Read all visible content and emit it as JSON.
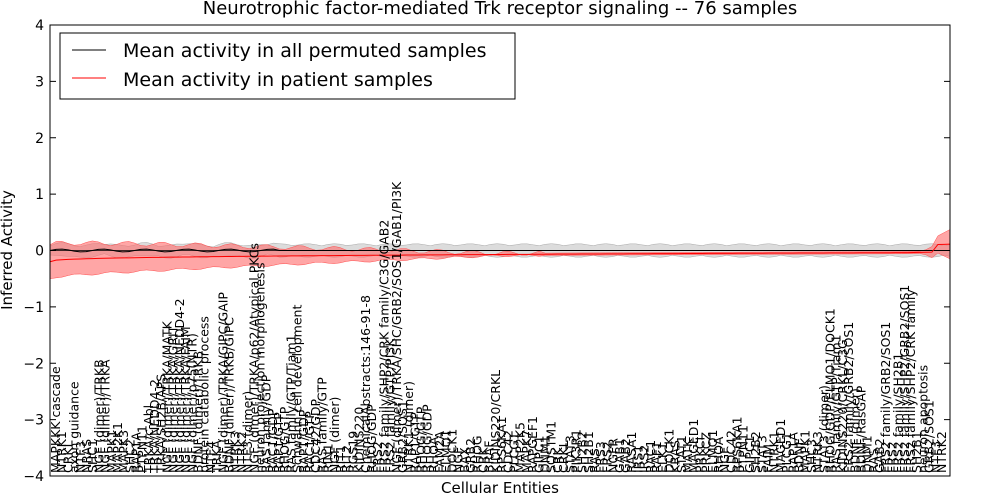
{
  "chart_data": {
    "type": "line",
    "title": "Neurotrophic factor-mediated Trk receptor signaling -- 76 samples",
    "xlabel": "Cellular Entities",
    "ylabel": "Inferred Activity",
    "ylim": [
      -4,
      4
    ],
    "yticks": [
      -4,
      -3,
      -2,
      -1,
      0,
      1,
      2,
      3,
      4
    ],
    "legend": {
      "position": "top-left",
      "entries": [
        {
          "label": "Mean activity in all permuted samples",
          "color": "#000000"
        },
        {
          "label": "Mean activity in patient samples",
          "color": "#ff0000"
        }
      ]
    },
    "colors": {
      "permuted_line": "#000000",
      "permuted_band": "#bfbfbf",
      "patient_line": "#ff0000",
      "patient_band": "#ff6b6b"
    },
    "n_points": 150,
    "series": [
      {
        "name": "Mean activity in all permuted samples",
        "mean": 0.0,
        "band": 0.1
      },
      {
        "name": "Mean activity in patient samples",
        "start": -0.2,
        "end": 0.1,
        "band_start": 0.3,
        "band_end": 0.02
      }
    ],
    "entity_labels": [
      "MAPKKK cascade",
      "NTRK1",
      "CRKL",
      "axon guidance",
      "NTF3",
      "NRAS",
      "SHC1",
      "NGF (dimer)/TRKB",
      "NGF (dimer)/TRKA",
      "MAPK1",
      "MAP2K1",
      "MAPK3",
      "SHC2",
      "RAP1A",
      "PTPN11",
      "TRKA/c-Abl",
      "TRKA/NEDD4-2",
      "TRKA/SH2B/APS",
      "NGF (dimer)/TRKA/MATK",
      "NGF (dimer)/TRKA/GRIT",
      "NGF (dimer)/TRKA/NEDD4-2",
      "NGF (dimer)/TRKA/FAIM",
      "NGF (dimer)/p75(NTR)",
      "BDNF (dimer)/TRKB",
      "protein catabolic process",
      "NTF4",
      "TRKA",
      "NGF (dimer)/TRKA/GIPC/GAIP",
      "BDNF (dimer)/TRKB/GIPC",
      "NTRK3",
      "NTRK2",
      "NTF3 (dimer)",
      "NGF (dimer)/TRKA/p62/Atypical PKCs",
      "neuron projection morphogenesis",
      "RAS family/GDP",
      "RAC1/GDP",
      "RAP1/GTP",
      "RHOG/GTP",
      "RAS family/GTP/Tiam1",
      "Schwann cell development",
      "RAP1/GDP",
      "RAC1/GTP",
      "CDC42/GDP",
      "RAS family/GTP",
      "RIN1",
      "NGF (dimer)",
      "RIT1",
      "RIT2",
      "RGS19",
      "KIDINS220",
      "ChemicalAbstracts:146-91-8",
      "RHOG/GDP",
      "FRS2",
      "FRS2 family/SHP2/CRK family/C3G/GAB2",
      "FRS2 family/GTP/PI3K",
      "NGF (dimer)/TRKA/SHC/GRB2/SOS1/GAB1/PI3K",
      "GRB2/SOS1",
      "NTRK1 (dimer)",
      "RAP1/GTP",
      "RHOG/GTP",
      "RHOG/GDP",
      "RHOA",
      "FAM2A",
      "ELMO1",
      "DOCK1",
      "NGF",
      "BAX",
      "GRB2",
      "RHOG",
      "CRK",
      "BRAF",
      "KIDINS220/CRKL",
      "RPS6KA1",
      "CDC42",
      "PLCG1",
      "MAP2K5",
      "MAPK7",
      "RAPGEF1",
      "GIPC1",
      "DNM1",
      "SQSTM1",
      "CRK",
      "CRKL",
      "STAT3",
      "PIK3R1",
      "SH2B2",
      "SH2B1",
      "RAS",
      "FRS3",
      "FRS2",
      "NGFR",
      "GAB1",
      "GAB2",
      "RASA1",
      "IRS1",
      "IRS2",
      "RAC1",
      "RAF1",
      "ELK1",
      "DOCK1",
      "KRAS",
      "STAT1",
      "MATK",
      "MAGED1",
      "PRKCI",
      "PRKCZ",
      "ELMO1",
      "RHOA",
      "NGF",
      "CDC42",
      "RPS6KA1",
      "PTPN11",
      "GIPC1",
      "SH2B2",
      "STAT3",
      "FAIM",
      "NTRK1",
      "MAGED1",
      "PLCG1",
      "RAP1A",
      "BDNF",
      "MAPK1",
      "SHC3",
      "NTRK3",
      "STAT3 (dimer)",
      "RHOG/GDP/ELMO1/DOCK1",
      "RAS family/GTP/Tiam1",
      "KIDINS220/CRKL/C3G",
      "FRS2 family/GRB2/SOS1",
      "BDNF (dimer)",
      "BDNF/RasGAP",
      "DNM1",
      "RAS",
      "GAB2",
      "FRS2 family/GRB2/SOS1",
      "FRS2",
      "FRS2 family/SH2B1",
      "FRS2 family/SHP2/GRB2/SOS1",
      "FRS2 family/SHP2/CRK family",
      "SH2B1",
      "neuron apoptosis",
      "GRB2/SOS1",
      "NTF3",
      "NTRK2"
    ]
  }
}
